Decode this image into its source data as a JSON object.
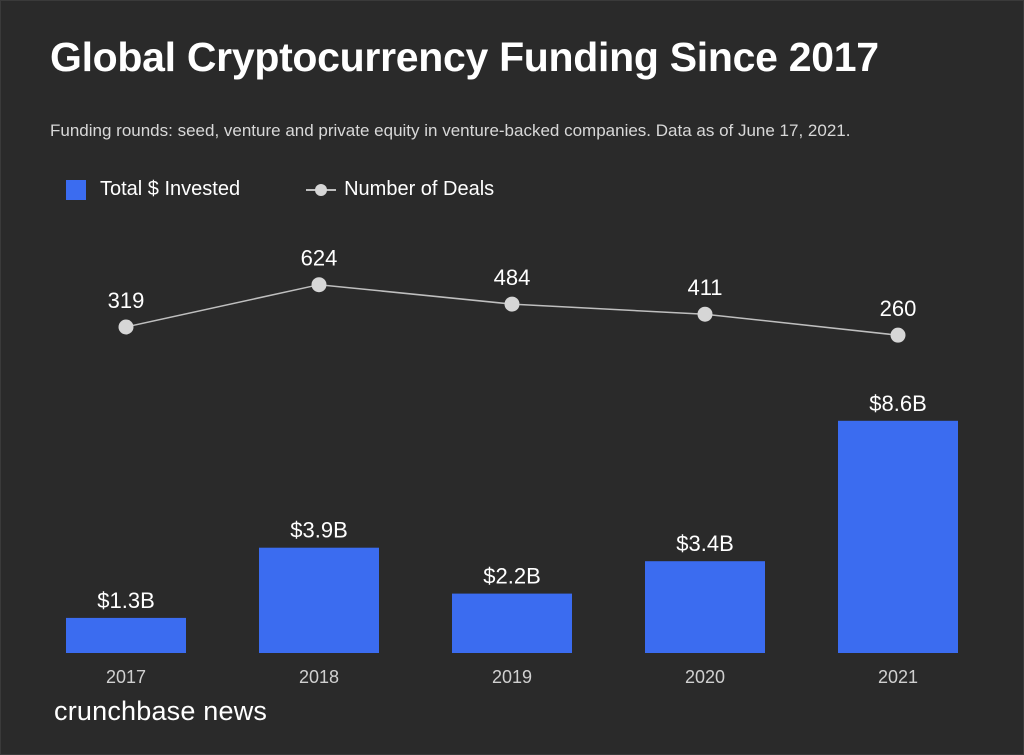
{
  "header": {
    "title": "Global Cryptocurrency Funding Since 2017",
    "subtitle": "Funding rounds: seed, venture and private equity in venture-backed companies. Data as of June 17, 2021."
  },
  "legend": {
    "bar_label": "Total $ Invested",
    "line_label": "Number of Deals"
  },
  "brand": "crunchbase news",
  "colors": {
    "background": "#2a2a2a",
    "bar": "#3b6cf0",
    "line": "#bfbfbf",
    "point": "#d6d6d6",
    "text": "#ffffff"
  },
  "chart_data": {
    "type": "bar",
    "categories": [
      "2017",
      "2018",
      "2019",
      "2020",
      "2021"
    ],
    "series": [
      {
        "name": "Total $ Invested",
        "type": "bar",
        "values": [
          1.3,
          3.9,
          2.2,
          3.4,
          8.6
        ],
        "labels": [
          "$1.3B",
          "$3.9B",
          "$2.2B",
          "$3.4B",
          "$8.6B"
        ]
      },
      {
        "name": "Number of Deals",
        "type": "line",
        "values": [
          319,
          624,
          484,
          411,
          260
        ],
        "labels": [
          "319",
          "624",
          "484",
          "411",
          "260"
        ]
      }
    ],
    "title": "Global Cryptocurrency Funding Since 2017",
    "xlabel": "",
    "ylabel": "",
    "grid": false,
    "legend_position": "top-left"
  }
}
